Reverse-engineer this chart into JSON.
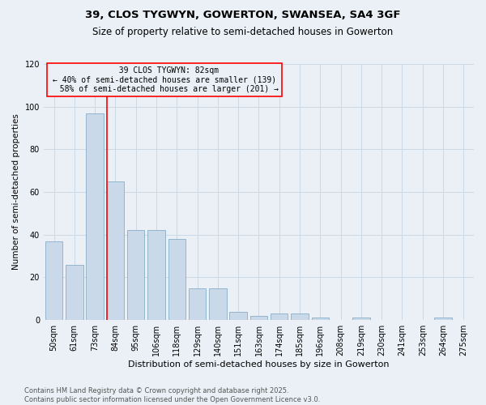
{
  "title1": "39, CLOS TYGWYN, GOWERTON, SWANSEA, SA4 3GF",
  "title2": "Size of property relative to semi-detached houses in Gowerton",
  "xlabel": "Distribution of semi-detached houses by size in Gowerton",
  "ylabel": "Number of semi-detached properties",
  "categories": [
    "50sqm",
    "61sqm",
    "73sqm",
    "84sqm",
    "95sqm",
    "106sqm",
    "118sqm",
    "129sqm",
    "140sqm",
    "151sqm",
    "163sqm",
    "174sqm",
    "185sqm",
    "196sqm",
    "208sqm",
    "219sqm",
    "230sqm",
    "241sqm",
    "253sqm",
    "264sqm",
    "275sqm"
  ],
  "values": [
    37,
    26,
    97,
    65,
    42,
    42,
    38,
    15,
    15,
    4,
    2,
    3,
    3,
    1,
    0,
    1,
    0,
    0,
    0,
    1,
    0
  ],
  "bar_color": "#c9d9ea",
  "bar_edge_color": "#8aaec8",
  "vline_color": "red",
  "vline_bar_index": 3,
  "property_label": "39 CLOS TYGWYN: 82sqm",
  "pct_smaller": 40,
  "pct_smaller_count": 139,
  "pct_larger": 58,
  "pct_larger_count": 201,
  "ylim": [
    0,
    120
  ],
  "yticks": [
    0,
    20,
    40,
    60,
    80,
    100,
    120
  ],
  "grid_color": "#ccd8e4",
  "bg_color": "#eaf0f6",
  "title1_fontsize": 9.5,
  "title2_fontsize": 8.5,
  "xlabel_fontsize": 8,
  "ylabel_fontsize": 7.5,
  "tick_fontsize": 7,
  "ann_fontsize": 7,
  "footer1": "Contains HM Land Registry data © Crown copyright and database right 2025.",
  "footer2": "Contains public sector information licensed under the Open Government Licence v3.0.",
  "footer_fontsize": 6
}
